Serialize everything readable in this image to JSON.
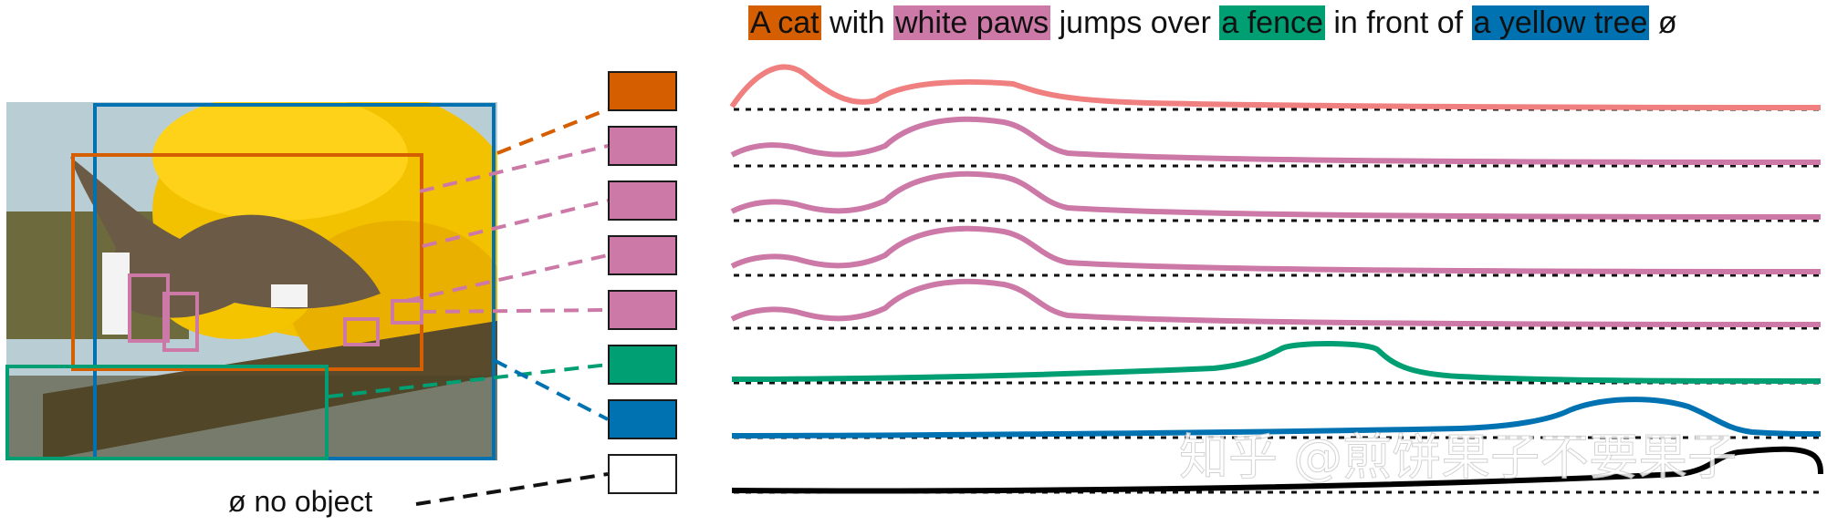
{
  "caption": {
    "segments": [
      {
        "text": "A cat",
        "highlight": "orange"
      },
      {
        "text": " with ",
        "highlight": null
      },
      {
        "text": "white paws",
        "highlight": "pink"
      },
      {
        "text": " jumps over ",
        "highlight": null
      },
      {
        "text": "a fence",
        "highlight": "green"
      },
      {
        "text": " in front of ",
        "highlight": null
      },
      {
        "text": "a yellow tree",
        "highlight": "blue"
      },
      {
        "text": " ø",
        "highlight": null
      }
    ]
  },
  "colors": {
    "orange": "#d45e00",
    "pink": "#cc79a7",
    "green": "#009e73",
    "blue": "#0072b2",
    "salmon": "#f08080",
    "black": "#000000",
    "white": "#ffffff"
  },
  "photo": {
    "subject": "cat jumping over fence in front of yellow tree"
  },
  "no_object_label": "ø no object",
  "tokens": [
    {
      "color": "orange",
      "curve": "salmon"
    },
    {
      "color": "pink",
      "curve": "pink"
    },
    {
      "color": "pink",
      "curve": "pink"
    },
    {
      "color": "pink",
      "curve": "pink"
    },
    {
      "color": "pink",
      "curve": "pink"
    },
    {
      "color": "green",
      "curve": "green"
    },
    {
      "color": "blue",
      "curve": "blue"
    },
    {
      "color": "white",
      "curve": "black"
    }
  ],
  "watermark": "知乎 @煎饼果子不要果子"
}
